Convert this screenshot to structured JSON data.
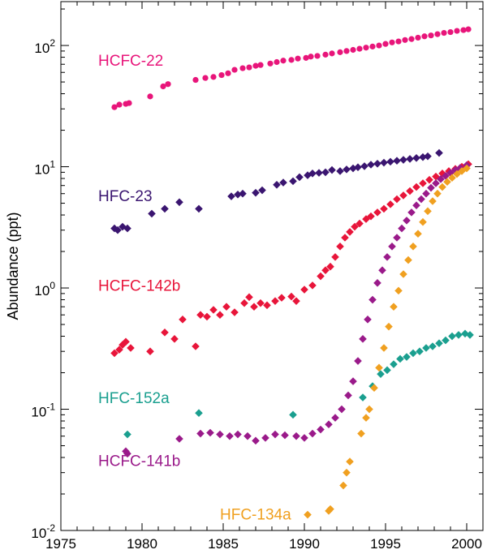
{
  "chart_data": {
    "type": "scatter",
    "ylabel": "Abundance (ppt)",
    "xlabel": "",
    "xlim": [
      1975,
      2001
    ],
    "ylim": [
      0.01,
      230
    ],
    "yscale": "log",
    "grid": false,
    "x_ticks": [
      "1975",
      "1980",
      "1985",
      "1990",
      "1995",
      "2000"
    ],
    "y_tick_labels": [
      {
        "base": "10",
        "exp": "2",
        "value": 100
      },
      {
        "base": "10",
        "exp": "1",
        "value": 10
      },
      {
        "base": "10",
        "exp": "0",
        "value": 1
      },
      {
        "base": "10",
        "exp": "-1",
        "value": 0.1
      },
      {
        "base": "10",
        "exp": "-2",
        "value": 0.01
      }
    ],
    "series": [
      {
        "name": "HCFC-22",
        "color": "#e8157a",
        "label_anchor": [
          1977.3,
          68
        ],
        "points": [
          [
            1978.3,
            31
          ],
          [
            1978.6,
            32.5
          ],
          [
            1979.0,
            33
          ],
          [
            1979.2,
            33.5
          ],
          [
            1980.5,
            38
          ],
          [
            1981.3,
            46
          ],
          [
            1981.6,
            48
          ],
          [
            1983.3,
            52
          ],
          [
            1983.9,
            54
          ],
          [
            1984.4,
            55
          ],
          [
            1984.9,
            57
          ],
          [
            1985.3,
            59
          ],
          [
            1985.7,
            63
          ],
          [
            1986.2,
            65
          ],
          [
            1986.6,
            66
          ],
          [
            1987.0,
            68
          ],
          [
            1987.3,
            69
          ],
          [
            1987.9,
            71
          ],
          [
            1988.3,
            73
          ],
          [
            1988.7,
            75
          ],
          [
            1989.2,
            76
          ],
          [
            1989.6,
            78
          ],
          [
            1990.1,
            79
          ],
          [
            1990.4,
            81
          ],
          [
            1990.8,
            82
          ],
          [
            1991.3,
            84
          ],
          [
            1991.7,
            86
          ],
          [
            1992.2,
            88
          ],
          [
            1992.6,
            90
          ],
          [
            1993.0,
            92
          ],
          [
            1993.4,
            94
          ],
          [
            1993.8,
            96
          ],
          [
            1994.2,
            98
          ],
          [
            1994.6,
            100
          ],
          [
            1995.0,
            103
          ],
          [
            1995.4,
            106
          ],
          [
            1995.8,
            108
          ],
          [
            1996.2,
            111
          ],
          [
            1996.6,
            113
          ],
          [
            1997.0,
            116
          ],
          [
            1997.4,
            119
          ],
          [
            1997.8,
            121
          ],
          [
            1998.2,
            124
          ],
          [
            1998.6,
            127
          ],
          [
            1999.0,
            129
          ],
          [
            1999.4,
            132
          ],
          [
            1999.8,
            134
          ],
          [
            2000.1,
            136
          ]
        ]
      },
      {
        "name": "HFC-23",
        "color": "#3a1570",
        "label_anchor": [
          1977.3,
          5.2
        ],
        "points": [
          [
            1978.3,
            3.1
          ],
          [
            1978.5,
            3.0
          ],
          [
            1978.8,
            3.2
          ],
          [
            1979.1,
            3.1
          ],
          [
            1980.6,
            4.1
          ],
          [
            1981.4,
            4.5
          ],
          [
            1982.3,
            5.1
          ],
          [
            1983.5,
            4.5
          ],
          [
            1985.5,
            5.7
          ],
          [
            1985.9,
            5.9
          ],
          [
            1986.2,
            6.0
          ],
          [
            1987.0,
            6.1
          ],
          [
            1987.4,
            6.4
          ],
          [
            1988.3,
            7.1
          ],
          [
            1988.7,
            7.4
          ],
          [
            1989.3,
            7.6
          ],
          [
            1989.7,
            8.2
          ],
          [
            1990.2,
            8.5
          ],
          [
            1990.5,
            8.8
          ],
          [
            1990.9,
            8.9
          ],
          [
            1991.3,
            9.0
          ],
          [
            1991.7,
            9.4
          ],
          [
            1992.2,
            9.2
          ],
          [
            1992.6,
            9.5
          ],
          [
            1993.0,
            9.7
          ],
          [
            1993.3,
            9.9
          ],
          [
            1993.7,
            10.1
          ],
          [
            1994.1,
            10.4
          ],
          [
            1994.5,
            10.6
          ],
          [
            1994.9,
            10.8
          ],
          [
            1995.3,
            11.0
          ],
          [
            1995.7,
            11.2
          ],
          [
            1996.1,
            11.4
          ],
          [
            1996.5,
            11.6
          ],
          [
            1996.9,
            11.8
          ],
          [
            1997.3,
            12.0
          ],
          [
            1997.6,
            12.2
          ],
          [
            1998.3,
            13.0
          ]
        ]
      },
      {
        "name": "HCFC-142b",
        "color": "#e8153a",
        "label_anchor": [
          1977.3,
          0.95
        ],
        "points": [
          [
            1978.3,
            0.29
          ],
          [
            1978.6,
            0.31
          ],
          [
            1978.8,
            0.34
          ],
          [
            1979.0,
            0.36
          ],
          [
            1979.3,
            0.32
          ],
          [
            1980.5,
            0.3
          ],
          [
            1981.4,
            0.43
          ],
          [
            1982.0,
            0.38
          ],
          [
            1982.5,
            0.55
          ],
          [
            1983.3,
            0.33
          ],
          [
            1983.6,
            0.6
          ],
          [
            1984.0,
            0.58
          ],
          [
            1984.4,
            0.66
          ],
          [
            1984.8,
            0.6
          ],
          [
            1985.2,
            0.7
          ],
          [
            1985.7,
            0.63
          ],
          [
            1986.3,
            0.75
          ],
          [
            1986.6,
            0.84
          ],
          [
            1986.9,
            0.7
          ],
          [
            1987.3,
            0.75
          ],
          [
            1987.7,
            0.72
          ],
          [
            1988.2,
            0.78
          ],
          [
            1988.6,
            0.83
          ],
          [
            1989.2,
            0.85
          ],
          [
            1989.5,
            0.78
          ],
          [
            1990.0,
            0.97
          ],
          [
            1990.5,
            1.05
          ],
          [
            1991.0,
            1.25
          ],
          [
            1991.3,
            1.4
          ],
          [
            1991.6,
            1.5
          ],
          [
            1991.9,
            1.8
          ],
          [
            1992.2,
            2.2
          ],
          [
            1992.5,
            2.6
          ],
          [
            1992.8,
            2.9
          ],
          [
            1993.1,
            3.2
          ],
          [
            1993.4,
            3.4
          ],
          [
            1993.8,
            3.7
          ],
          [
            1994.1,
            3.9
          ],
          [
            1994.5,
            4.2
          ],
          [
            1994.9,
            4.5
          ],
          [
            1995.3,
            4.9
          ],
          [
            1995.7,
            5.4
          ],
          [
            1996.1,
            5.8
          ],
          [
            1996.5,
            6.3
          ],
          [
            1996.9,
            6.8
          ],
          [
            1997.3,
            7.3
          ],
          [
            1997.7,
            7.8
          ],
          [
            1998.1,
            8.3
          ],
          [
            1998.5,
            8.8
          ],
          [
            1998.9,
            9.2
          ],
          [
            1999.3,
            9.6
          ],
          [
            1999.7,
            10.0
          ],
          [
            2000.1,
            10.5
          ]
        ]
      },
      {
        "name": "HFC-152a",
        "color": "#1a9f8f",
        "label_anchor": [
          1977.3,
          0.112
        ],
        "points": [
          [
            1979.1,
            0.062
          ],
          [
            1983.5,
            0.093
          ],
          [
            1989.3,
            0.09
          ],
          [
            1993.6,
            0.125
          ],
          [
            1994.2,
            0.155
          ],
          [
            1994.7,
            0.195
          ],
          [
            1995.1,
            0.21
          ],
          [
            1995.5,
            0.235
          ],
          [
            1995.9,
            0.26
          ],
          [
            1996.3,
            0.27
          ],
          [
            1996.7,
            0.29
          ],
          [
            1997.1,
            0.3
          ],
          [
            1997.5,
            0.32
          ],
          [
            1997.9,
            0.33
          ],
          [
            1998.3,
            0.35
          ],
          [
            1998.7,
            0.37
          ],
          [
            1999.1,
            0.4
          ],
          [
            1999.5,
            0.41
          ],
          [
            1999.9,
            0.42
          ],
          [
            2000.2,
            0.41
          ]
        ]
      },
      {
        "name": "HCFC-141b",
        "color": "#9a1a8a",
        "label_anchor": [
          1977.3,
          0.034
        ],
        "points": [
          [
            1979.0,
            0.045
          ],
          [
            1979.1,
            0.043
          ],
          [
            1982.3,
            0.057
          ],
          [
            1983.6,
            0.063
          ],
          [
            1984.2,
            0.064
          ],
          [
            1984.8,
            0.062
          ],
          [
            1985.4,
            0.06
          ],
          [
            1985.9,
            0.062
          ],
          [
            1986.5,
            0.06
          ],
          [
            1987.0,
            0.055
          ],
          [
            1987.6,
            0.058
          ],
          [
            1988.2,
            0.062
          ],
          [
            1988.8,
            0.061
          ],
          [
            1989.5,
            0.06
          ],
          [
            1990.0,
            0.058
          ],
          [
            1990.5,
            0.063
          ],
          [
            1991.0,
            0.068
          ],
          [
            1991.5,
            0.075
          ],
          [
            1991.9,
            0.085
          ],
          [
            1992.3,
            0.1
          ],
          [
            1992.7,
            0.13
          ],
          [
            1993.0,
            0.17
          ],
          [
            1993.3,
            0.25
          ],
          [
            1993.6,
            0.38
          ],
          [
            1993.9,
            0.55
          ],
          [
            1994.2,
            0.8
          ],
          [
            1994.5,
            1.1
          ],
          [
            1994.8,
            1.4
          ],
          [
            1995.1,
            1.8
          ],
          [
            1995.4,
            2.2
          ],
          [
            1995.7,
            2.6
          ],
          [
            1996.0,
            3.1
          ],
          [
            1996.3,
            3.6
          ],
          [
            1996.6,
            4.2
          ],
          [
            1996.9,
            4.8
          ],
          [
            1997.2,
            5.4
          ],
          [
            1997.5,
            6.0
          ],
          [
            1997.8,
            6.7
          ],
          [
            1998.1,
            7.3
          ],
          [
            1998.4,
            7.9
          ],
          [
            1998.7,
            8.4
          ],
          [
            1999.0,
            8.9
          ],
          [
            1999.3,
            9.4
          ],
          [
            1999.6,
            9.8
          ],
          [
            2000.0,
            10.3
          ]
        ]
      },
      {
        "name": "HFC-134a",
        "color": "#f0a020",
        "label_anchor": [
          1984.8,
          0.0123
        ],
        "points": [
          [
            1990.2,
            0.0135
          ],
          [
            1991.5,
            0.0145
          ],
          [
            1991.6,
            0.015
          ],
          [
            1992.4,
            0.0235
          ],
          [
            1992.6,
            0.03
          ],
          [
            1992.8,
            0.037
          ],
          [
            1993.5,
            0.063
          ],
          [
            1993.8,
            0.085
          ],
          [
            1994.0,
            0.1
          ],
          [
            1994.3,
            0.15
          ],
          [
            1994.6,
            0.22
          ],
          [
            1994.9,
            0.32
          ],
          [
            1995.2,
            0.48
          ],
          [
            1995.5,
            0.7
          ],
          [
            1995.8,
            0.95
          ],
          [
            1996.1,
            1.3
          ],
          [
            1996.4,
            1.7
          ],
          [
            1996.7,
            2.2
          ],
          [
            1997.0,
            2.8
          ],
          [
            1997.3,
            3.5
          ],
          [
            1997.6,
            4.3
          ],
          [
            1997.9,
            5.2
          ],
          [
            1998.2,
            6.0
          ],
          [
            1998.5,
            6.8
          ],
          [
            1998.8,
            7.5
          ],
          [
            1999.1,
            8.1
          ],
          [
            1999.4,
            8.7
          ],
          [
            1999.7,
            9.2
          ],
          [
            2000.0,
            9.7
          ]
        ]
      }
    ]
  }
}
